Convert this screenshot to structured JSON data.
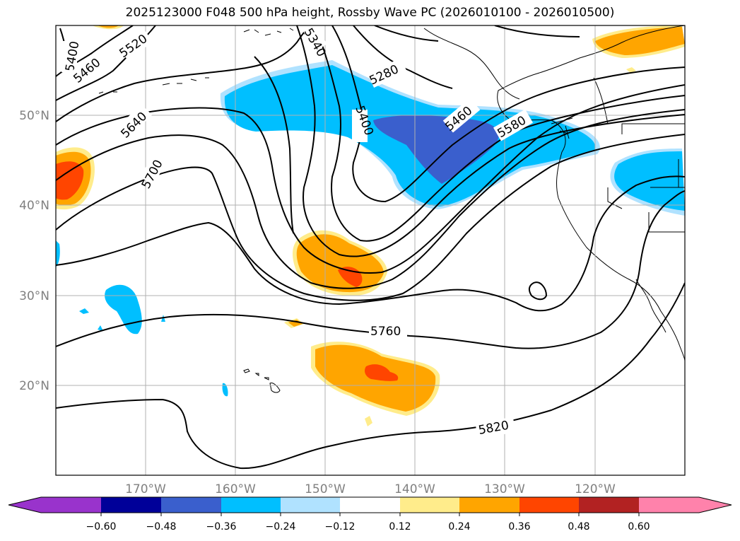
{
  "title": "2025123000 F048 500 hPa height, Rossby Wave PC (2026010100 - 2026010500)",
  "map": {
    "lon_labels": [
      "170°W",
      "160°W",
      "150°W",
      "140°W",
      "130°W",
      "120°W"
    ],
    "lat_labels": [
      "50°N",
      "40°N",
      "30°N",
      "20°N"
    ],
    "contour_labels": [
      "5400",
      "5460",
      "5520",
      "5640",
      "5700",
      "5340",
      "5280",
      "5400",
      "5460",
      "5580",
      "5760",
      "5820"
    ]
  },
  "colorbar": {
    "ticks": [
      "−0.60",
      "−0.48",
      "−0.36",
      "−0.24",
      "−0.12",
      "0.12",
      "0.24",
      "0.36",
      "0.48",
      "0.60"
    ],
    "colors": [
      "#9933cc",
      "#000099",
      "#3a5fcd",
      "#00bfff",
      "#b0e2ff",
      "#ffffff",
      "#ffec8b",
      "#ffa500",
      "#ff4500",
      "#b22222",
      "#ff82ab"
    ]
  }
}
